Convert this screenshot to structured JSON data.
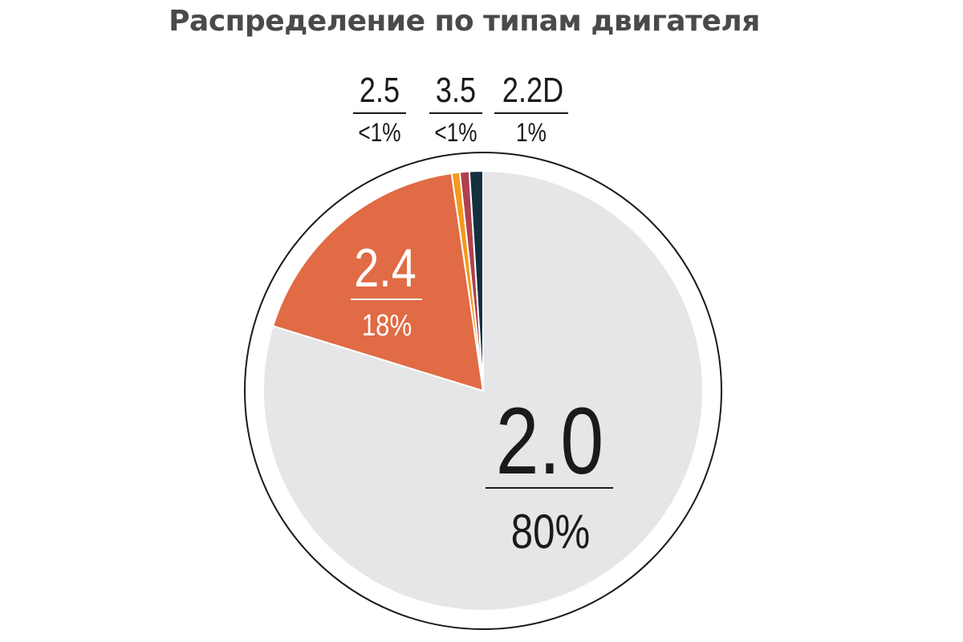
{
  "chart_data": {
    "type": "pie",
    "title": "Распределение по типам двигателя",
    "slices": [
      {
        "label": "2.0",
        "percent_label": "80%",
        "value": 80,
        "color": "#e6e6e8"
      },
      {
        "label": "2.4",
        "percent_label": "18%",
        "value": 18,
        "color": "#e06b45"
      },
      {
        "label": "2.5",
        "percent_label": "<1%",
        "value": 0.6,
        "color": "#f39a1e"
      },
      {
        "label": "3.5",
        "percent_label": "<1%",
        "value": 0.7,
        "color": "#b0404e"
      },
      {
        "label": "2.2D",
        "percent_label": "1%",
        "value": 1.0,
        "color": "#13303f"
      }
    ],
    "outer_ring_color": "#1a1a1a"
  }
}
